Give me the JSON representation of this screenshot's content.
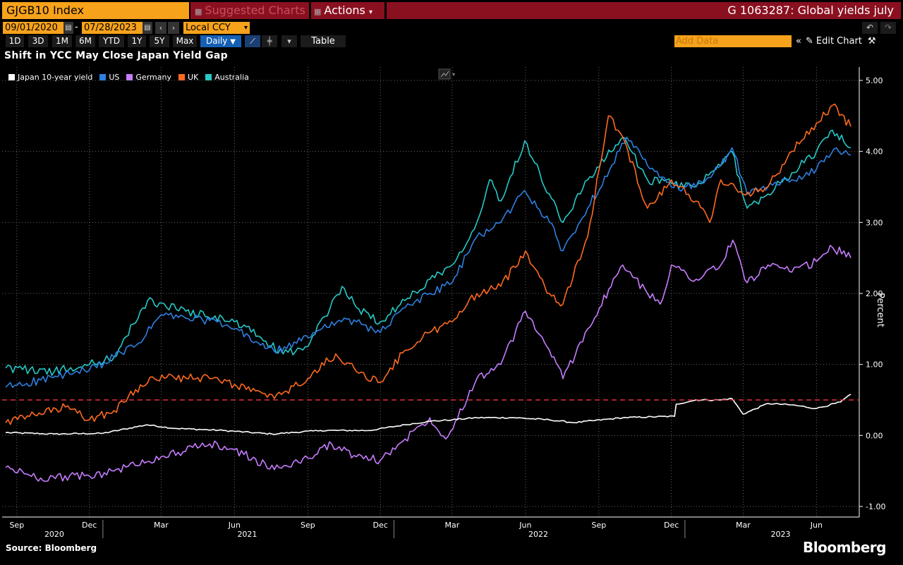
{
  "toolbar": {
    "security": "GJGB10 Index",
    "suggested_label": "Suggested Charts",
    "actions_label": "Actions",
    "chart_id": "G 1063287: Global yields july",
    "start_date": "09/01/2020",
    "end_date": "07/28/2023",
    "currency": "Local CCY",
    "periods": [
      "1D",
      "3D",
      "1M",
      "6M",
      "YTD",
      "1Y",
      "5Y",
      "Max"
    ],
    "frequency": "Daily",
    "table_label": "Table",
    "add_data_placeholder": "Add Data",
    "edit_chart_label": "Edit Chart"
  },
  "footer": {
    "source": "Source: Bloomberg",
    "brand": "Bloomberg"
  },
  "chart_data": {
    "type": "line",
    "title": "Shift in YCC May Close Japan Yield Gap",
    "ylabel": "Percent",
    "ylim": [
      -1.0,
      5.0
    ],
    "yticks": [
      "5.00",
      "4.00",
      "3.00",
      "2.00",
      "1.00",
      "0.00",
      "-1.00"
    ],
    "xlim": [
      "2020-09-01",
      "2023-07-28"
    ],
    "x_tick_labels": [
      {
        "date": "2020-09-15",
        "label": "Sep"
      },
      {
        "date": "2020-12-15",
        "label": "Dec"
      },
      {
        "date": "2021-03-15",
        "label": "Mar"
      },
      {
        "date": "2021-06-15",
        "label": "Jun"
      },
      {
        "date": "2021-09-15",
        "label": "Sep"
      },
      {
        "date": "2021-12-15",
        "label": "Dec"
      },
      {
        "date": "2022-03-15",
        "label": "Mar"
      },
      {
        "date": "2022-06-15",
        "label": "Jun"
      },
      {
        "date": "2022-09-15",
        "label": "Sep"
      },
      {
        "date": "2022-12-15",
        "label": "Dec"
      },
      {
        "date": "2023-03-15",
        "label": "Mar"
      },
      {
        "date": "2023-06-15",
        "label": "Jun"
      }
    ],
    "year_labels": [
      {
        "date": "2020-11-01",
        "label": "2020"
      },
      {
        "date": "2021-07-01",
        "label": "2021"
      },
      {
        "date": "2022-07-01",
        "label": "2022"
      },
      {
        "date": "2023-05-01",
        "label": "2023"
      }
    ],
    "year_boundaries": [
      "2021-01-01",
      "2022-01-01",
      "2023-01-01"
    ],
    "reference_line": {
      "y": 0.5,
      "color": "#e0303c",
      "style": "dashed"
    },
    "grid": true,
    "legend_position": "top-left",
    "series": [
      {
        "name": "Japan 10-year yield",
        "color": "#ffffff",
        "points": [
          [
            "2020-09-01",
            0.04
          ],
          [
            "2020-11-01",
            0.02
          ],
          [
            "2021-01-01",
            0.03
          ],
          [
            "2021-02-25",
            0.15
          ],
          [
            "2021-04-01",
            0.1
          ],
          [
            "2021-06-01",
            0.07
          ],
          [
            "2021-08-01",
            0.02
          ],
          [
            "2021-10-01",
            0.07
          ],
          [
            "2021-12-01",
            0.07
          ],
          [
            "2022-01-15",
            0.15
          ],
          [
            "2022-02-15",
            0.2
          ],
          [
            "2022-03-15",
            0.22
          ],
          [
            "2022-04-15",
            0.25
          ],
          [
            "2022-06-01",
            0.25
          ],
          [
            "2022-07-15",
            0.22
          ],
          [
            "2022-08-15",
            0.18
          ],
          [
            "2022-10-15",
            0.25
          ],
          [
            "2022-12-19",
            0.27
          ],
          [
            "2022-12-21",
            0.44
          ],
          [
            "2023-01-15",
            0.5
          ],
          [
            "2023-02-15",
            0.5
          ],
          [
            "2023-03-01",
            0.52
          ],
          [
            "2023-03-15",
            0.3
          ],
          [
            "2023-04-15",
            0.45
          ],
          [
            "2023-05-15",
            0.43
          ],
          [
            "2023-06-15",
            0.38
          ],
          [
            "2023-07-15",
            0.47
          ],
          [
            "2023-07-28",
            0.58
          ]
        ]
      },
      {
        "name": "US",
        "color": "#2e7fe0",
        "points": [
          [
            "2020-09-01",
            0.68
          ],
          [
            "2020-10-15",
            0.78
          ],
          [
            "2020-12-15",
            0.92
          ],
          [
            "2021-01-15",
            1.1
          ],
          [
            "2021-02-15",
            1.3
          ],
          [
            "2021-03-15",
            1.7
          ],
          [
            "2021-04-15",
            1.65
          ],
          [
            "2021-05-15",
            1.62
          ],
          [
            "2021-06-15",
            1.5
          ],
          [
            "2021-07-15",
            1.3
          ],
          [
            "2021-08-04",
            1.18
          ],
          [
            "2021-09-01",
            1.3
          ],
          [
            "2021-10-15",
            1.6
          ],
          [
            "2021-11-15",
            1.6
          ],
          [
            "2021-12-15",
            1.45
          ],
          [
            "2022-01-15",
            1.8
          ],
          [
            "2022-02-15",
            2.0
          ],
          [
            "2022-03-15",
            2.15
          ],
          [
            "2022-04-15",
            2.8
          ],
          [
            "2022-05-15",
            3.0
          ],
          [
            "2022-06-14",
            3.45
          ],
          [
            "2022-07-15",
            3.0
          ],
          [
            "2022-08-01",
            2.6
          ],
          [
            "2022-09-01",
            3.2
          ],
          [
            "2022-10-20",
            4.2
          ],
          [
            "2022-11-15",
            3.8
          ],
          [
            "2022-12-15",
            3.5
          ],
          [
            "2023-01-15",
            3.5
          ],
          [
            "2023-02-15",
            3.8
          ],
          [
            "2023-03-01",
            4.05
          ],
          [
            "2023-03-20",
            3.4
          ],
          [
            "2023-04-15",
            3.5
          ],
          [
            "2023-05-15",
            3.6
          ],
          [
            "2023-06-15",
            3.75
          ],
          [
            "2023-07-10",
            4.05
          ],
          [
            "2023-07-28",
            3.95
          ]
        ]
      },
      {
        "name": "Germany",
        "color": "#c77dff",
        "points": [
          [
            "2020-09-01",
            -0.45
          ],
          [
            "2020-10-15",
            -0.6
          ],
          [
            "2020-12-15",
            -0.57
          ],
          [
            "2021-01-15",
            -0.5
          ],
          [
            "2021-03-15",
            -0.3
          ],
          [
            "2021-05-15",
            -0.12
          ],
          [
            "2021-06-15",
            -0.2
          ],
          [
            "2021-08-04",
            -0.48
          ],
          [
            "2021-09-15",
            -0.32
          ],
          [
            "2021-10-15",
            -0.12
          ],
          [
            "2021-11-15",
            -0.3
          ],
          [
            "2021-12-15",
            -0.35
          ],
          [
            "2022-01-15",
            -0.05
          ],
          [
            "2022-02-15",
            0.25
          ],
          [
            "2022-03-07",
            -0.05
          ],
          [
            "2022-04-15",
            0.8
          ],
          [
            "2022-05-15",
            1.0
          ],
          [
            "2022-06-15",
            1.75
          ],
          [
            "2022-07-15",
            1.2
          ],
          [
            "2022-08-01",
            0.8
          ],
          [
            "2022-09-01",
            1.5
          ],
          [
            "2022-10-15",
            2.4
          ],
          [
            "2022-11-15",
            2.0
          ],
          [
            "2022-12-01",
            1.85
          ],
          [
            "2022-12-15",
            2.4
          ],
          [
            "2023-01-15",
            2.2
          ],
          [
            "2023-02-15",
            2.4
          ],
          [
            "2023-03-02",
            2.75
          ],
          [
            "2023-03-20",
            2.15
          ],
          [
            "2023-04-15",
            2.4
          ],
          [
            "2023-05-15",
            2.3
          ],
          [
            "2023-06-15",
            2.45
          ],
          [
            "2023-07-05",
            2.65
          ],
          [
            "2023-07-28",
            2.5
          ]
        ]
      },
      {
        "name": "UK",
        "color": "#ff6a1f",
        "points": [
          [
            "2020-09-01",
            0.18
          ],
          [
            "2020-11-15",
            0.4
          ],
          [
            "2020-12-15",
            0.22
          ],
          [
            "2021-01-15",
            0.35
          ],
          [
            "2021-03-01",
            0.82
          ],
          [
            "2021-05-15",
            0.8
          ],
          [
            "2021-06-15",
            0.72
          ],
          [
            "2021-08-04",
            0.52
          ],
          [
            "2021-09-15",
            0.8
          ],
          [
            "2021-10-20",
            1.15
          ],
          [
            "2021-11-15",
            0.9
          ],
          [
            "2021-12-15",
            0.75
          ],
          [
            "2022-01-15",
            1.2
          ],
          [
            "2022-02-15",
            1.45
          ],
          [
            "2022-03-15",
            1.6
          ],
          [
            "2022-04-15",
            2.0
          ],
          [
            "2022-05-15",
            2.1
          ],
          [
            "2022-06-15",
            2.6
          ],
          [
            "2022-07-15",
            2.0
          ],
          [
            "2022-08-01",
            1.85
          ],
          [
            "2022-09-01",
            2.8
          ],
          [
            "2022-09-27",
            4.5
          ],
          [
            "2022-10-15",
            4.2
          ],
          [
            "2022-11-15",
            3.2
          ],
          [
            "2022-12-15",
            3.6
          ],
          [
            "2023-01-15",
            3.3
          ],
          [
            "2023-02-01",
            3.0
          ],
          [
            "2023-02-15",
            3.6
          ],
          [
            "2023-03-15",
            3.4
          ],
          [
            "2023-04-15",
            3.5
          ],
          [
            "2023-05-15",
            4.0
          ],
          [
            "2023-06-15",
            4.4
          ],
          [
            "2023-07-05",
            4.65
          ],
          [
            "2023-07-28",
            4.35
          ]
        ]
      },
      {
        "name": "Australia",
        "color": "#26c9c7",
        "points": [
          [
            "2020-09-01",
            0.95
          ],
          [
            "2020-11-01",
            0.9
          ],
          [
            "2020-12-15",
            1.0
          ],
          [
            "2021-01-15",
            1.1
          ],
          [
            "2021-02-26",
            1.9
          ],
          [
            "2021-04-15",
            1.75
          ],
          [
            "2021-06-15",
            1.6
          ],
          [
            "2021-07-15",
            1.4
          ],
          [
            "2021-08-15",
            1.15
          ],
          [
            "2021-09-15",
            1.25
          ],
          [
            "2021-10-28",
            2.1
          ],
          [
            "2021-11-15",
            1.8
          ],
          [
            "2021-12-15",
            1.6
          ],
          [
            "2022-01-15",
            1.9
          ],
          [
            "2022-02-15",
            2.2
          ],
          [
            "2022-03-15",
            2.4
          ],
          [
            "2022-04-15",
            3.0
          ],
          [
            "2022-05-01",
            3.6
          ],
          [
            "2022-05-15",
            3.3
          ],
          [
            "2022-06-14",
            4.15
          ],
          [
            "2022-07-15",
            3.4
          ],
          [
            "2022-08-01",
            3.0
          ],
          [
            "2022-09-01",
            3.6
          ],
          [
            "2022-10-15",
            4.2
          ],
          [
            "2022-11-15",
            3.6
          ],
          [
            "2022-12-15",
            3.55
          ],
          [
            "2023-01-15",
            3.5
          ],
          [
            "2023-02-15",
            3.8
          ],
          [
            "2023-03-01",
            4.0
          ],
          [
            "2023-03-20",
            3.2
          ],
          [
            "2023-04-15",
            3.4
          ],
          [
            "2023-05-15",
            3.7
          ],
          [
            "2023-06-15",
            4.0
          ],
          [
            "2023-07-05",
            4.3
          ],
          [
            "2023-07-28",
            4.05
          ]
        ]
      }
    ]
  }
}
